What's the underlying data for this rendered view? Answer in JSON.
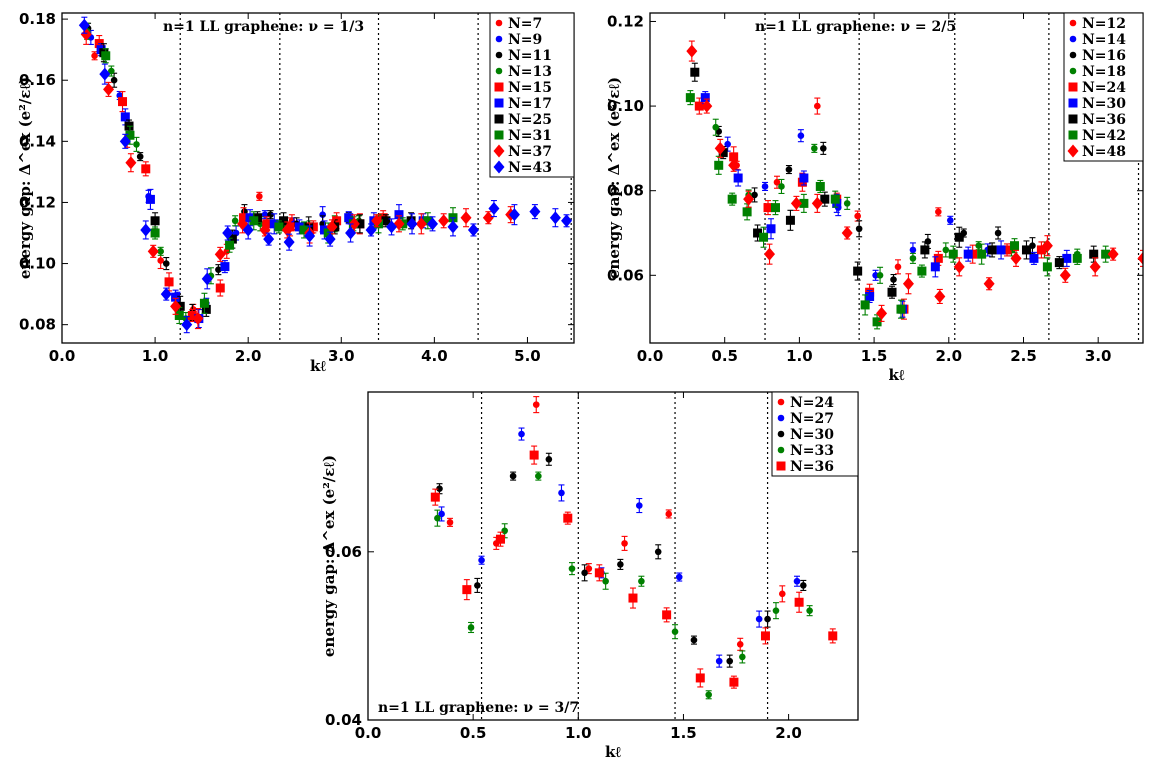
{
  "chart_data": [
    {
      "type": "scatter",
      "title": "n=1 LL graphene: ν = 1/3",
      "xlabel": "kℓ",
      "ylabel": "energy gap: Δ^ex (e²/εℓ)",
      "xlim": [
        0.0,
        5.5
      ],
      "ylim": [
        0.074,
        0.182
      ],
      "xticks": [
        0.0,
        1.0,
        2.0,
        3.0,
        4.0,
        5.0
      ],
      "xtick_labels": [
        "0.0",
        "1.0",
        "2.0",
        "3.0",
        "4.0",
        "5.0"
      ],
      "yticks": [
        0.08,
        0.1,
        0.12,
        0.14,
        0.16,
        0.18
      ],
      "ytick_labels": [
        "0.08",
        "0.10",
        "0.12",
        "0.14",
        "0.16",
        "0.18"
      ],
      "vlines": [
        1.27,
        2.34,
        3.4,
        4.47,
        5.47
      ],
      "legend_position": "top-right",
      "grid": false,
      "series": [
        {
          "name": "N=7",
          "color": "#ff0000",
          "marker": "dot",
          "x": [
            0.35,
            0.7,
            1.06,
            1.41,
            1.77,
            2.12,
            2.47
          ],
          "y": [
            0.168,
            0.14,
            0.101,
            0.085,
            0.104,
            0.122,
            0.114
          ]
        },
        {
          "name": "N=9",
          "color": "#0000ff",
          "marker": "dot",
          "x": [
            0.31,
            0.62,
            0.93,
            1.24,
            1.55,
            1.87,
            2.18,
            2.49,
            2.8
          ],
          "y": [
            0.174,
            0.155,
            0.122,
            0.088,
            0.087,
            0.11,
            0.116,
            0.113,
            0.116
          ]
        },
        {
          "name": "N=11",
          "color": "#000000",
          "marker": "dot",
          "x": [
            0.28,
            0.56,
            0.84,
            1.12,
            1.4,
            1.68,
            1.96,
            2.24,
            2.52,
            2.8,
            3.08
          ],
          "y": [
            0.177,
            0.16,
            0.135,
            0.1,
            0.084,
            0.098,
            0.117,
            0.116,
            0.113,
            0.113,
            0.115
          ]
        },
        {
          "name": "N=13",
          "color": "#008000",
          "marker": "dot",
          "x": [
            0.27,
            0.53,
            0.8,
            1.06,
            1.33,
            1.6,
            1.86,
            2.13,
            2.39,
            2.66,
            2.93,
            3.19
          ],
          "y": [
            0.176,
            0.163,
            0.139,
            0.104,
            0.082,
            0.096,
            0.114,
            0.113,
            0.112,
            0.112,
            0.113,
            0.114
          ]
        },
        {
          "name": "N=15",
          "color": "#ff0000",
          "marker": "square",
          "x": [
            0.4,
            0.65,
            0.9,
            1.15,
            1.4,
            1.7,
            1.95,
            2.2,
            2.45,
            2.7,
            2.95,
            3.2,
            3.45
          ],
          "y": [
            0.172,
            0.153,
            0.131,
            0.094,
            0.083,
            0.092,
            0.115,
            0.113,
            0.112,
            0.112,
            0.114,
            0.113,
            0.115
          ]
        },
        {
          "name": "N=17",
          "color": "#0000ff",
          "marker": "square",
          "x": [
            0.42,
            0.68,
            0.95,
            1.22,
            1.47,
            1.75,
            2.02,
            2.28,
            2.55,
            2.82,
            3.08,
            3.35,
            3.62,
            3.88
          ],
          "y": [
            0.17,
            0.148,
            0.121,
            0.089,
            0.082,
            0.099,
            0.115,
            0.113,
            0.112,
            0.111,
            0.115,
            0.114,
            0.116,
            0.114
          ]
        },
        {
          "name": "N=25",
          "color": "#000000",
          "marker": "square",
          "x": [
            0.45,
            0.72,
            1.0,
            1.27,
            1.55,
            1.83,
            2.1,
            2.38,
            2.65,
            2.93,
            3.2,
            3.48,
            3.75
          ],
          "y": [
            0.169,
            0.145,
            0.114,
            0.086,
            0.085,
            0.108,
            0.115,
            0.114,
            0.112,
            0.112,
            0.113,
            0.114,
            0.114
          ]
        },
        {
          "name": "N=31",
          "color": "#008000",
          "marker": "square",
          "x": [
            0.47,
            0.73,
            1.0,
            1.26,
            1.53,
            1.8,
            2.06,
            2.33,
            2.6,
            2.86,
            3.13,
            3.4,
            3.66,
            3.93,
            4.2
          ],
          "y": [
            0.168,
            0.142,
            0.11,
            0.083,
            0.087,
            0.106,
            0.114,
            0.112,
            0.111,
            0.11,
            0.113,
            0.113,
            0.113,
            0.114,
            0.115
          ]
        },
        {
          "name": "N=37",
          "color": "#ff0000",
          "marker": "diamond",
          "x": [
            0.26,
            0.5,
            0.74,
            0.98,
            1.22,
            1.46,
            1.7,
            1.94,
            2.18,
            2.42,
            2.66,
            2.9,
            3.14,
            3.38,
            3.62,
            3.86,
            4.1,
            4.34,
            4.58,
            4.82
          ],
          "y": [
            0.175,
            0.157,
            0.133,
            0.104,
            0.086,
            0.082,
            0.103,
            0.113,
            0.111,
            0.111,
            0.11,
            0.112,
            0.113,
            0.114,
            0.113,
            0.113,
            0.114,
            0.115,
            0.115,
            0.116
          ]
        },
        {
          "name": "N=43",
          "color": "#0000ff",
          "marker": "diamond",
          "x": [
            0.24,
            0.46,
            0.68,
            0.9,
            1.12,
            1.34,
            1.56,
            1.78,
            2.0,
            2.22,
            2.44,
            2.66,
            2.88,
            3.1,
            3.32,
            3.54,
            3.76,
            3.98,
            4.2,
            4.42,
            4.64,
            4.86,
            5.08,
            5.3,
            5.42
          ],
          "y": [
            0.178,
            0.162,
            0.14,
            0.111,
            0.09,
            0.08,
            0.095,
            0.11,
            0.111,
            0.108,
            0.107,
            0.109,
            0.108,
            0.11,
            0.111,
            0.112,
            0.113,
            0.113,
            0.112,
            0.111,
            0.118,
            0.116,
            0.117,
            0.115,
            0.114
          ]
        }
      ]
    },
    {
      "type": "scatter",
      "title": "n=1 LL graphene: ν = 2/5",
      "xlabel": "kℓ",
      "ylabel": "energy gap: Δ^ex (e²/εℓ)",
      "xlim": [
        0.0,
        3.3
      ],
      "ylim": [
        0.044,
        0.122
      ],
      "xticks": [
        0.0,
        0.5,
        1.0,
        1.5,
        2.0,
        2.5,
        3.0
      ],
      "xtick_labels": [
        "0.0",
        "0.5",
        "1.0",
        "1.5",
        "2.0",
        "2.5",
        "3.0"
      ],
      "yticks": [
        0.06,
        0.08,
        0.1,
        0.12
      ],
      "ytick_labels": [
        "0.06",
        "0.08",
        "0.10",
        "0.12"
      ],
      "vlines": [
        0.77,
        1.4,
        2.04,
        2.67,
        3.27
      ],
      "legend_position": "top-right",
      "grid": false,
      "series": [
        {
          "name": "N=12",
          "color": "#ff0000",
          "marker": "dot",
          "x": [
            0.58,
            0.85,
            1.12,
            1.39,
            1.66,
            1.93
          ],
          "y": [
            0.086,
            0.082,
            0.1,
            0.074,
            0.062,
            0.075
          ]
        },
        {
          "name": "N=14",
          "color": "#0000ff",
          "marker": "dot",
          "x": [
            0.52,
            0.77,
            1.01,
            1.26,
            1.51,
            1.76,
            2.01,
            2.26
          ],
          "y": [
            0.091,
            0.081,
            0.093,
            0.076,
            0.06,
            0.066,
            0.073,
            0.066
          ]
        },
        {
          "name": "N=16",
          "color": "#000000",
          "marker": "dot",
          "x": [
            0.46,
            0.7,
            0.93,
            1.16,
            1.4,
            1.63,
            1.86,
            2.1,
            2.33,
            2.56
          ],
          "y": [
            0.094,
            0.079,
            0.085,
            0.09,
            0.071,
            0.059,
            0.068,
            0.07,
            0.07,
            0.067
          ]
        },
        {
          "name": "N=18",
          "color": "#008000",
          "marker": "dot",
          "x": [
            0.44,
            0.66,
            0.88,
            1.1,
            1.32,
            1.54,
            1.76,
            1.98,
            2.2,
            2.42,
            2.64,
            2.86
          ],
          "y": [
            0.095,
            0.079,
            0.081,
            0.09,
            0.077,
            0.06,
            0.064,
            0.066,
            0.067,
            0.066,
            0.066,
            0.065
          ]
        },
        {
          "name": "N=24",
          "color": "#ff0000",
          "marker": "square",
          "x": [
            0.33,
            0.56,
            0.79,
            1.02,
            1.25,
            1.47,
            1.7,
            1.93,
            2.16,
            2.39,
            2.62
          ],
          "y": [
            0.1,
            0.088,
            0.076,
            0.082,
            0.078,
            0.056,
            0.052,
            0.064,
            0.065,
            0.066,
            0.066
          ]
        },
        {
          "name": "N=30",
          "color": "#0000ff",
          "marker": "square",
          "x": [
            0.37,
            0.59,
            0.81,
            1.03,
            1.25,
            1.47,
            1.69,
            1.91,
            2.13,
            2.35,
            2.57,
            2.79
          ],
          "y": [
            0.102,
            0.083,
            0.071,
            0.083,
            0.077,
            0.055,
            0.052,
            0.062,
            0.065,
            0.066,
            0.064,
            0.064
          ]
        },
        {
          "name": "N=36",
          "color": "#000000",
          "marker": "square",
          "x": [
            0.3,
            0.49,
            0.72,
            0.94,
            1.17,
            1.39,
            1.62,
            1.84,
            2.07,
            2.29,
            2.52,
            2.74,
            2.97
          ],
          "y": [
            0.108,
            0.089,
            0.07,
            0.073,
            0.078,
            0.061,
            0.056,
            0.066,
            0.069,
            0.066,
            0.066,
            0.063,
            0.065
          ]
        },
        {
          "name": "N=42",
          "color": "#008000",
          "marker": "square",
          "x": [
            0.27,
            0.46,
            0.55,
            0.65,
            0.76,
            0.84,
            1.03,
            1.14,
            1.24,
            1.44,
            1.52,
            1.68,
            1.82,
            2.03,
            2.22,
            2.44,
            2.66,
            2.86,
            3.05
          ],
          "y": [
            0.102,
            0.086,
            0.078,
            0.075,
            0.069,
            0.076,
            0.077,
            0.081,
            0.078,
            0.053,
            0.049,
            0.052,
            0.061,
            0.065,
            0.065,
            0.067,
            0.062,
            0.064,
            0.065
          ]
        },
        {
          "name": "N=48",
          "color": "#ff0000",
          "marker": "diamond",
          "x": [
            0.28,
            0.38,
            0.47,
            0.56,
            0.66,
            0.8,
            0.98,
            1.12,
            1.32,
            1.55,
            1.73,
            1.94,
            2.07,
            2.27,
            2.45,
            2.66,
            2.78,
            2.98,
            3.1,
            3.3
          ],
          "y": [
            0.113,
            0.1,
            0.09,
            0.086,
            0.078,
            0.065,
            0.077,
            0.077,
            0.07,
            0.051,
            0.058,
            0.055,
            0.062,
            0.058,
            0.064,
            0.067,
            0.06,
            0.062,
            0.065,
            0.064
          ]
        }
      ]
    },
    {
      "type": "scatter",
      "title": "n=1 LL graphene: ν = 3/7",
      "xlabel": "kℓ",
      "ylabel": "energy gap: Δ^ex (e²/εℓ)",
      "xlim": [
        0.0,
        2.33
      ],
      "ylim": [
        0.04,
        0.079
      ],
      "xticks": [
        0.0,
        0.5,
        1.0,
        1.5,
        2.0
      ],
      "xtick_labels": [
        "0.0",
        "0.5",
        "1.0",
        "1.5",
        "2.0"
      ],
      "yticks": [
        0.04,
        0.06
      ],
      "ytick_labels": [
        "0.04",
        "0.06"
      ],
      "vlines": [
        0.54,
        1.0,
        1.46,
        1.9
      ],
      "legend_position": "top-right",
      "grid": false,
      "series": [
        {
          "name": "N=24",
          "color": "#ff0000",
          "marker": "dot",
          "x": [
            0.39,
            0.61,
            0.8,
            1.05,
            1.22,
            1.43,
            1.77,
            1.97
          ],
          "y": [
            0.0635,
            0.061,
            0.0775,
            0.058,
            0.061,
            0.0645,
            0.049,
            0.055
          ]
        },
        {
          "name": "N=27",
          "color": "#0000ff",
          "marker": "dot",
          "x": [
            0.35,
            0.54,
            0.73,
            0.92,
            1.11,
            1.29,
            1.48,
            1.67,
            1.86,
            2.04
          ],
          "y": [
            0.0645,
            0.059,
            0.074,
            0.067,
            0.0575,
            0.0655,
            0.057,
            0.047,
            0.052,
            0.0565
          ]
        },
        {
          "name": "N=30",
          "color": "#000000",
          "marker": "dot",
          "x": [
            0.34,
            0.52,
            0.69,
            0.86,
            1.03,
            1.2,
            1.38,
            1.55,
            1.72,
            1.9,
            2.07
          ],
          "y": [
            0.0675,
            0.056,
            0.069,
            0.071,
            0.0575,
            0.0585,
            0.06,
            0.0495,
            0.047,
            0.052,
            0.056
          ]
        },
        {
          "name": "N=33",
          "color": "#008000",
          "marker": "dot",
          "x": [
            0.33,
            0.49,
            0.65,
            0.81,
            0.97,
            1.13,
            1.3,
            1.46,
            1.62,
            1.78,
            1.94,
            2.1
          ],
          "y": [
            0.064,
            0.051,
            0.0625,
            0.069,
            0.058,
            0.0565,
            0.0565,
            0.0505,
            0.043,
            0.0475,
            0.053,
            0.053
          ]
        },
        {
          "name": "N=36",
          "color": "#ff0000",
          "marker": "square",
          "x": [
            0.32,
            0.47,
            0.63,
            0.79,
            0.95,
            1.1,
            1.26,
            1.42,
            1.58,
            1.74,
            1.89,
            2.05,
            2.21
          ],
          "y": [
            0.0665,
            0.0555,
            0.0615,
            0.0715,
            0.064,
            0.0575,
            0.0545,
            0.0525,
            0.045,
            0.0445,
            0.05,
            0.054,
            0.05
          ]
        }
      ]
    }
  ]
}
